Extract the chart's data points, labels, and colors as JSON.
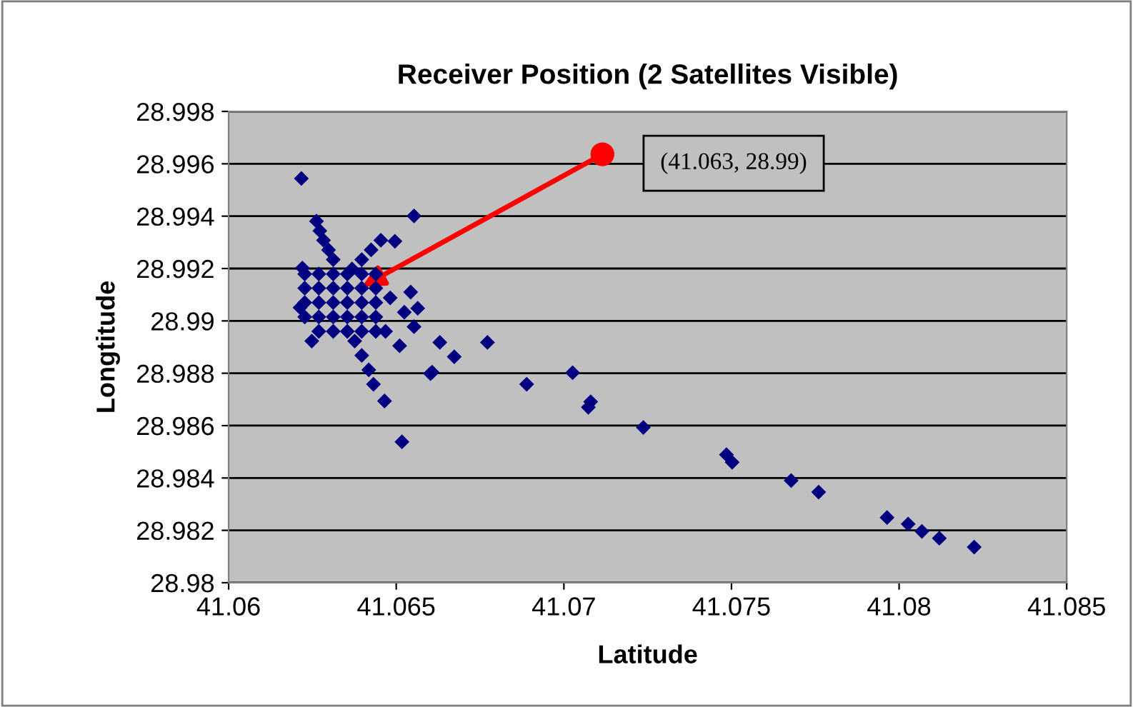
{
  "chart_data": {
    "type": "scatter",
    "title": "Receiver Position (2 Satellites Visible)",
    "xlabel": "Latitude",
    "ylabel": "Longtitude",
    "xlim": [
      41.06,
      41.085
    ],
    "xticks": [
      41.06,
      41.065,
      41.07,
      41.075,
      41.08,
      41.085
    ],
    "ylim": [
      28.98,
      28.998
    ],
    "yticks": [
      28.98,
      28.982,
      28.984,
      28.986,
      28.988,
      28.99,
      28.992,
      28.994,
      28.996,
      28.998
    ],
    "grid": "y",
    "marker": "diamond",
    "legend": false,
    "annotations": [
      "(41.063, 28.99)"
    ],
    "series": [
      {
        "color": "#000080",
        "x": [
          41.06217,
          41.06553,
          41.06496,
          41.0622,
          41.06543,
          41.06564,
          41.06553,
          41.0663,
          41.06673,
          41.06772,
          41.06517,
          41.06465,
          41.06602,
          41.06607,
          41.06889,
          41.07026,
          41.0708,
          41.07073,
          41.07237,
          41.07485,
          41.07502,
          41.07678,
          41.0776,
          41.07964,
          41.08027,
          41.08068,
          41.0812,
          41.08224,
          41.06262,
          41.06272,
          41.06283,
          41.06298,
          41.06312,
          41.06227,
          41.06269,
          41.06312,
          41.06354,
          41.06397,
          41.06439,
          41.06227,
          41.06269,
          41.06312,
          41.06354,
          41.06397,
          41.06439,
          41.06227,
          41.06269,
          41.06312,
          41.06354,
          41.06397,
          41.06439,
          41.06227,
          41.06269,
          41.06312,
          41.06354,
          41.06397,
          41.06439,
          41.06269,
          41.06312,
          41.06354,
          41.06397,
          41.06439,
          41.06454,
          41.06425,
          41.06397,
          41.06368,
          41.06376,
          41.06397,
          41.06418,
          41.06432,
          41.06468,
          41.0651,
          41.06213,
          41.06248,
          41.06482,
          41.06524
        ],
        "values": [
          28.99544,
          28.99401,
          28.99304,
          28.99202,
          28.9911,
          28.99048,
          28.98978,
          28.98918,
          28.98863,
          28.98918,
          28.98538,
          28.98694,
          28.98799,
          28.98804,
          28.98758,
          28.98802,
          28.98691,
          28.9867,
          28.98593,
          28.98489,
          28.9846,
          28.9839,
          28.98346,
          28.98249,
          28.98224,
          28.98196,
          28.9817,
          28.98136,
          28.99381,
          28.99344,
          28.99308,
          28.99271,
          28.99234,
          28.99179,
          28.99179,
          28.99179,
          28.99179,
          28.99179,
          28.99179,
          28.99125,
          28.99125,
          28.99125,
          28.99125,
          28.99125,
          28.99125,
          28.9907,
          28.9907,
          28.9907,
          28.9907,
          28.9907,
          28.9907,
          28.99015,
          28.99015,
          28.99015,
          28.99015,
          28.99015,
          28.99015,
          28.9896,
          28.9896,
          28.9896,
          28.9896,
          28.9896,
          28.99308,
          28.99271,
          28.99234,
          28.99198,
          28.98923,
          28.98868,
          28.98813,
          28.98758,
          28.9896,
          28.98905,
          28.99051,
          28.98923,
          28.99088,
          28.99033
        ]
      }
    ]
  }
}
